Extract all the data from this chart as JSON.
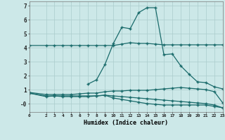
{
  "xlabel": "Humidex (Indice chaleur)",
  "ylabel": "",
  "bg_color": "#cce8e8",
  "grid_color": "#aacccc",
  "line_color": "#1a6b6b",
  "xlim": [
    0,
    23
  ],
  "ylim": [
    -0.6,
    7.3
  ],
  "yticks": [
    0,
    1,
    2,
    3,
    4,
    5,
    6,
    7
  ],
  "ytick_labels": [
    "-0",
    "1",
    "2",
    "3",
    "4",
    "5",
    "6",
    "7"
  ],
  "xticks": [
    0,
    2,
    3,
    4,
    5,
    6,
    7,
    8,
    9,
    10,
    11,
    12,
    13,
    14,
    15,
    16,
    17,
    18,
    19,
    20,
    21,
    22,
    23
  ],
  "line1_x": [
    0,
    2,
    3,
    4,
    5,
    6,
    7,
    8,
    9,
    10,
    11,
    12,
    13,
    14,
    15,
    16,
    17,
    18,
    19,
    20,
    21,
    22,
    23
  ],
  "line1_y": [
    4.15,
    4.15,
    4.15,
    4.15,
    4.15,
    4.15,
    4.15,
    4.15,
    4.15,
    4.15,
    4.25,
    4.35,
    4.3,
    4.3,
    4.25,
    4.2,
    4.2,
    4.2,
    4.2,
    4.2,
    4.2,
    4.2,
    4.2
  ],
  "line2_x": [
    7,
    8,
    9,
    10,
    11,
    12,
    13,
    14,
    15,
    16,
    17,
    18,
    19,
    20,
    21,
    22,
    23
  ],
  "line2_y": [
    1.4,
    1.7,
    2.8,
    4.3,
    5.45,
    5.35,
    6.5,
    6.85,
    6.85,
    3.5,
    3.55,
    2.7,
    2.1,
    1.55,
    1.5,
    1.2,
    1.05
  ],
  "line3_x": [
    0,
    2,
    3,
    4,
    5,
    6,
    7,
    8,
    9,
    10,
    11,
    12,
    13,
    14,
    15,
    16,
    17,
    18,
    19,
    20,
    21,
    22,
    23
  ],
  "line3_y": [
    0.8,
    0.65,
    0.65,
    0.65,
    0.65,
    0.7,
    0.75,
    0.75,
    0.85,
    0.9,
    0.9,
    0.95,
    0.95,
    0.95,
    1.0,
    1.05,
    1.1,
    1.15,
    1.1,
    1.05,
    1.0,
    0.85,
    0.05
  ],
  "line4_x": [
    0,
    2,
    3,
    4,
    5,
    6,
    7,
    8,
    9,
    10,
    11,
    12,
    13,
    14,
    15,
    16,
    17,
    18,
    19,
    20,
    21,
    22,
    23
  ],
  "line4_y": [
    0.75,
    0.5,
    0.55,
    0.5,
    0.5,
    0.5,
    0.5,
    0.55,
    0.6,
    0.4,
    0.3,
    0.2,
    0.1,
    0.0,
    -0.05,
    -0.1,
    -0.1,
    -0.1,
    -0.1,
    -0.1,
    -0.1,
    -0.2,
    -0.3
  ],
  "line5_x": [
    0,
    2,
    3,
    4,
    5,
    6,
    7,
    8,
    9,
    10,
    11,
    12,
    13,
    14,
    15,
    16,
    17,
    18,
    19,
    20,
    21,
    22,
    23
  ],
  "line5_y": [
    0.75,
    0.55,
    0.55,
    0.55,
    0.55,
    0.55,
    0.55,
    0.55,
    0.6,
    0.55,
    0.5,
    0.45,
    0.4,
    0.35,
    0.3,
    0.25,
    0.2,
    0.15,
    0.1,
    0.05,
    0.0,
    -0.1,
    -0.3
  ]
}
